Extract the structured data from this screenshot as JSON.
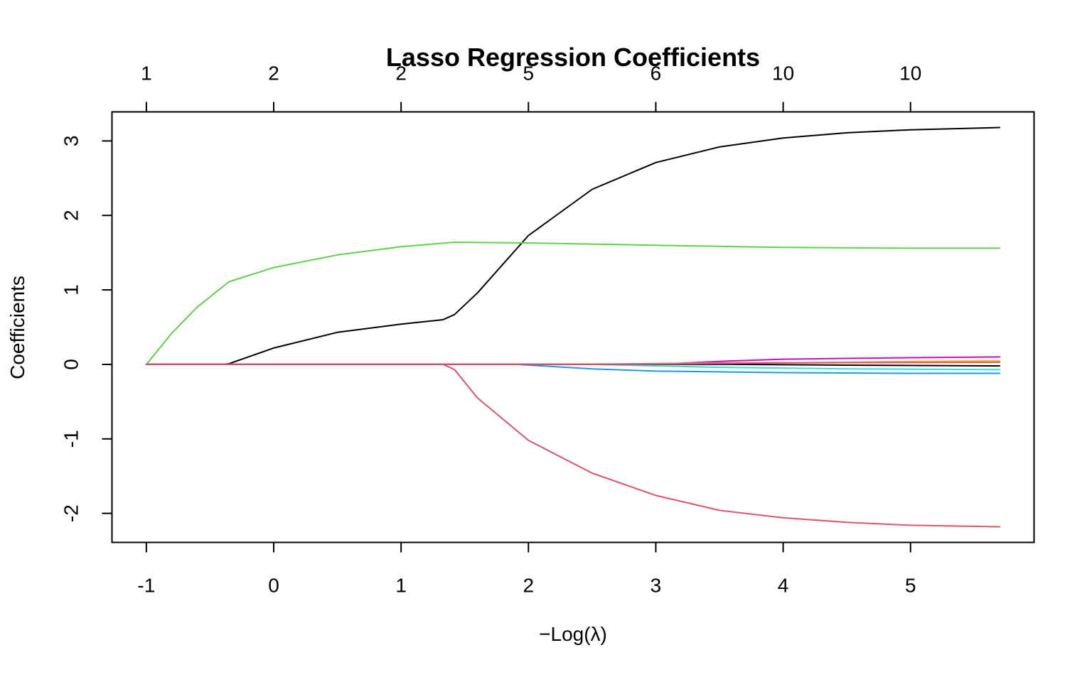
{
  "chart_data": {
    "type": "line",
    "title": "Lasso Regression Coefficients",
    "xlabel": "−Log(λ)",
    "ylabel": "Coefficients",
    "xlim": [
      -1.27,
      5.97
    ],
    "ylim": [
      -2.39,
      3.39
    ],
    "x_ticks": [
      -1,
      0,
      1,
      2,
      3,
      4,
      5
    ],
    "y_ticks": [
      -2,
      -1,
      0,
      1,
      2,
      3
    ],
    "top_axis": {
      "positions": [
        -1,
        0,
        1,
        2,
        3,
        4,
        5
      ],
      "labels": [
        "1",
        "2",
        "2",
        "5",
        "6",
        "10",
        "10"
      ]
    },
    "grid": false,
    "legend": "none",
    "series": [
      {
        "color": "#000000",
        "x": [
          -1,
          -0.4,
          -0.35,
          0,
          0.5,
          1,
          1.33,
          1.42,
          1.6,
          2,
          2.5,
          3,
          3.5,
          4,
          4.5,
          5,
          5.7
        ],
        "y": [
          0,
          0,
          0.01,
          0.22,
          0.43,
          0.54,
          0.6,
          0.67,
          0.96,
          1.73,
          2.35,
          2.71,
          2.92,
          3.04,
          3.11,
          3.15,
          3.18
        ]
      },
      {
        "color": "#DF536B",
        "x": [
          -1,
          1.33,
          1.42,
          1.6,
          2,
          2.5,
          3,
          3.5,
          4,
          4.5,
          5,
          5.7
        ],
        "y": [
          0,
          0,
          -0.07,
          -0.45,
          -1.02,
          -1.46,
          -1.76,
          -1.96,
          -2.06,
          -2.12,
          -2.16,
          -2.18
        ]
      },
      {
        "color": "#61D04F",
        "x": [
          -1,
          -0.8,
          -0.6,
          -0.35,
          0,
          0.5,
          1,
          1.42,
          2,
          3,
          4,
          5,
          5.7
        ],
        "y": [
          0,
          0.42,
          0.77,
          1.11,
          1.3,
          1.47,
          1.58,
          1.64,
          1.63,
          1.6,
          1.57,
          1.56,
          1.56
        ]
      },
      {
        "color": "#2297E6",
        "x": [
          -1,
          1.9,
          2.5,
          3,
          3.5,
          4,
          5,
          5.7
        ],
        "y": [
          0,
          0,
          -0.06,
          -0.09,
          -0.1,
          -0.11,
          -0.12,
          -0.12
        ]
      },
      {
        "color": "#28E2E5",
        "x": [
          -1,
          2.5,
          3.5,
          4.5,
          5.7
        ],
        "y": [
          0,
          0,
          -0.04,
          -0.06,
          -0.07
        ]
      },
      {
        "color": "#CD0BBC",
        "x": [
          -1,
          3,
          3.5,
          4,
          4.5,
          5,
          5.7
        ],
        "y": [
          0,
          0,
          0.04,
          0.07,
          0.08,
          0.09,
          0.1
        ]
      },
      {
        "color": "#F5C710",
        "x": [
          -1,
          3.4,
          4,
          5,
          5.7
        ],
        "y": [
          0,
          0,
          0.02,
          0.04,
          0.05
        ]
      },
      {
        "color": "#9E9E9E",
        "x": [
          -1,
          2.4,
          3.5,
          5.7
        ],
        "y": [
          0,
          0,
          0.02,
          0.03
        ]
      },
      {
        "color": "#000000",
        "x": [
          -1,
          3.6,
          4.5,
          5.7
        ],
        "y": [
          0,
          0,
          -0.01,
          -0.02
        ]
      },
      {
        "color": "#DF536B",
        "x": [
          -1,
          2.8,
          4,
          5.7
        ],
        "y": [
          0,
          0,
          0.02,
          0.03
        ]
      }
    ]
  }
}
